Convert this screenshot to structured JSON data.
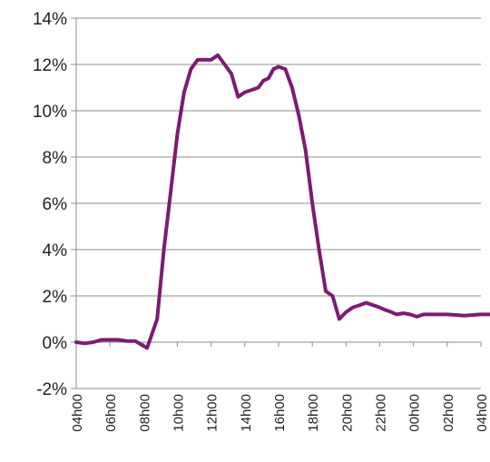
{
  "chart_data": {
    "type": "line",
    "title": "",
    "xlabel": "",
    "ylabel": "",
    "x_tick_labels": [
      "04h00",
      "06h00",
      "08h00",
      "10h00",
      "12h00",
      "14h00",
      "16h00",
      "18h00",
      "20h00",
      "22h00",
      "00h00",
      "02h00",
      "04h00"
    ],
    "y_tick_labels": [
      "14%",
      "12%",
      "10%",
      "8%",
      "6%",
      "4%",
      "2%",
      "0%",
      "-2%"
    ],
    "ylim": [
      -2,
      14
    ],
    "y_unit": "%",
    "grid": "horizontal",
    "legend": "none",
    "line_color": "#7f1a75",
    "series": [
      {
        "hours_from_start": [
          0,
          0.5,
          1,
          1.5,
          2,
          2.5,
          3,
          3.5,
          4.2,
          4.8,
          5.2,
          5.6,
          6.0,
          6.4,
          6.8,
          7.2,
          7.6,
          8.0,
          8.4,
          8.8,
          9.2,
          9.6,
          10.0,
          10.4,
          10.8,
          11.1,
          11.4,
          11.7,
          12.0,
          12.4,
          12.8,
          13.2,
          13.6,
          14.0,
          14.4,
          14.8,
          15.2,
          15.6,
          16.0,
          16.4,
          16.8,
          17.2,
          17.6,
          18.0,
          18.3,
          18.7,
          19.0,
          19.4,
          19.8,
          20.2,
          20.6,
          21.0,
          22.0,
          23.0,
          24.0,
          25.0,
          26.0,
          27.0,
          28.0,
          28.6,
          29.0
        ],
        "values": [
          0,
          -0.05,
          0,
          0.1,
          0.1,
          0.1,
          0.05,
          0.05,
          -0.25,
          1.0,
          4.0,
          6.5,
          9.0,
          10.8,
          11.8,
          12.2,
          12.2,
          12.2,
          12.4,
          12.0,
          11.6,
          10.6,
          10.8,
          10.9,
          11.0,
          11.3,
          11.4,
          11.8,
          11.9,
          11.8,
          11.0,
          9.8,
          8.3,
          6.0,
          4.0,
          2.2,
          2.0,
          1.0,
          1.3,
          1.5,
          1.6,
          1.7,
          1.6,
          1.5,
          1.4,
          1.3,
          1.2,
          1.25,
          1.2,
          1.1,
          1.2,
          1.2,
          1.2,
          1.15,
          1.2,
          1.2,
          1.2,
          1.2,
          1.2,
          1.25,
          1.25
        ]
      }
    ]
  }
}
